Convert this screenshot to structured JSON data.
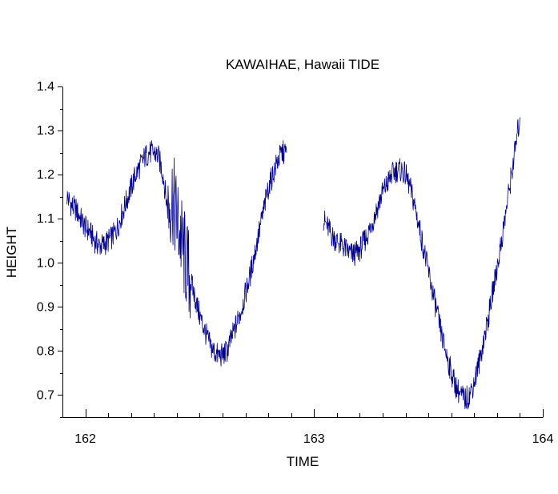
{
  "chart_data": {
    "type": "line",
    "title": "KAWAIHAE, Hawaii TIDE",
    "xlabel": "TIME",
    "ylabel": "HEIGHT",
    "xlim": [
      161.9,
      164
    ],
    "ylim": [
      0.65,
      1.4
    ],
    "x_major_ticks": [
      162,
      163,
      164
    ],
    "x_minor_step": 0.1,
    "y_ticks": [
      0.7,
      0.8,
      0.9,
      1.0,
      1.1,
      1.2,
      1.3,
      1.4
    ],
    "y_tick_labels": [
      "0.7",
      "0.8",
      "0.9",
      "1.0",
      "1.1",
      "1.2",
      "1.3",
      "1.4"
    ],
    "y_minor_step": 0.05,
    "grid": false,
    "legend": "none",
    "series_color": "#00008b",
    "series": [
      {
        "x": [
          161.92,
          161.94,
          161.96,
          161.98,
          162.0,
          162.02,
          162.04,
          162.06,
          162.08,
          162.1,
          162.12,
          162.14,
          162.16,
          162.18,
          162.2,
          162.22,
          162.24,
          162.26,
          162.28,
          162.3,
          162.32,
          162.34,
          162.36,
          162.38,
          162.4,
          162.42,
          162.44,
          162.46,
          162.48,
          162.5,
          162.52,
          162.54,
          162.56,
          162.58,
          162.6,
          162.62,
          162.64,
          162.66,
          162.68,
          162.7,
          162.72,
          162.74,
          162.76,
          162.78,
          162.8,
          162.82,
          162.84,
          162.86,
          162.88
        ],
        "y": [
          1.15,
          1.13,
          1.12,
          1.1,
          1.08,
          1.07,
          1.05,
          1.04,
          1.04,
          1.05,
          1.06,
          1.08,
          1.11,
          1.14,
          1.17,
          1.2,
          1.22,
          1.24,
          1.25,
          1.25,
          1.24,
          1.2,
          1.12,
          1.15,
          1.1,
          1.05,
          1.0,
          0.96,
          0.92,
          0.88,
          0.85,
          0.82,
          0.8,
          0.79,
          0.79,
          0.8,
          0.83,
          0.86,
          0.89,
          0.93,
          0.97,
          1.02,
          1.07,
          1.12,
          1.17,
          1.2,
          1.23,
          1.25,
          1.25
        ]
      },
      {
        "x": [
          163.04,
          163.06,
          163.08,
          163.1,
          163.12,
          163.14,
          163.16,
          163.18,
          163.2,
          163.22,
          163.24,
          163.26,
          163.28,
          163.3,
          163.32,
          163.34,
          163.36,
          163.38,
          163.4,
          163.42,
          163.44,
          163.46,
          163.48,
          163.5,
          163.52,
          163.54,
          163.56,
          163.58,
          163.6,
          163.62,
          163.64,
          163.66,
          163.68,
          163.7,
          163.72,
          163.74,
          163.76,
          163.78,
          163.8,
          163.82,
          163.84,
          163.86,
          163.88,
          163.9
        ],
        "y": [
          1.1,
          1.08,
          1.06,
          1.05,
          1.04,
          1.03,
          1.02,
          1.02,
          1.03,
          1.05,
          1.07,
          1.1,
          1.13,
          1.16,
          1.18,
          1.2,
          1.21,
          1.21,
          1.2,
          1.17,
          1.13,
          1.08,
          1.03,
          0.98,
          0.93,
          0.88,
          0.83,
          0.79,
          0.75,
          0.72,
          0.7,
          0.69,
          0.7,
          0.73,
          0.77,
          0.82,
          0.87,
          0.93,
          0.99,
          1.05,
          1.12,
          1.19,
          1.26,
          1.33
        ]
      }
    ]
  }
}
